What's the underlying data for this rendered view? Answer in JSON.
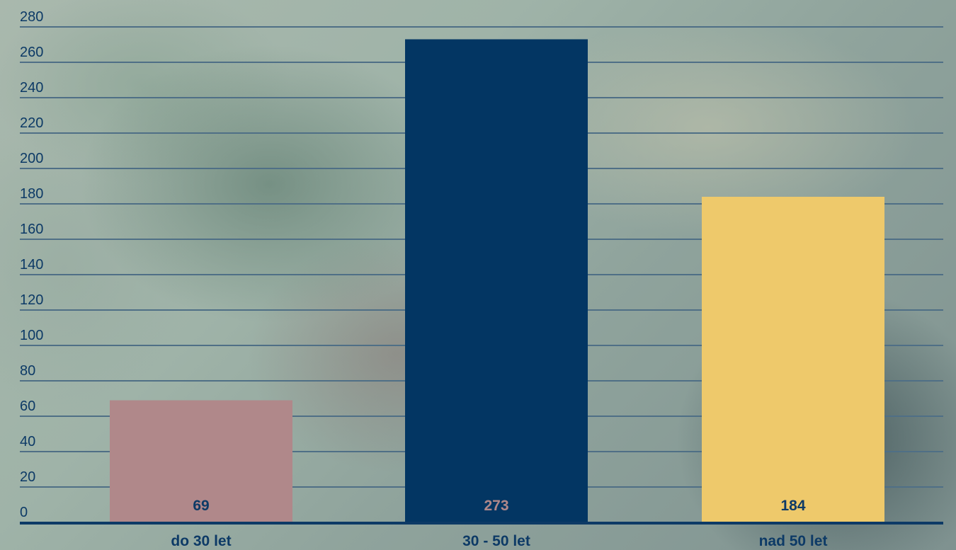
{
  "chart_data": {
    "type": "bar",
    "categories": [
      "do 30 let",
      "30 - 50 let",
      "nad 50 let"
    ],
    "values": [
      69,
      273,
      184
    ],
    "data_labels": [
      "69",
      "273",
      "184"
    ],
    "bar_colors": [
      "#b0888a",
      "#033663",
      "#eec96b"
    ],
    "data_label_colors": [
      "#0d3a66",
      "#b0888a",
      "#0d3a66"
    ],
    "ylim": [
      0,
      280
    ],
    "y_ticks": [
      "0",
      "20",
      "40",
      "60",
      "80",
      "100",
      "120",
      "140",
      "160",
      "180",
      "200",
      "220",
      "240",
      "260",
      "280"
    ],
    "grid": true,
    "axis_color": "#0d3a66",
    "grid_color": "#4f6f86",
    "text_color": "#0d3a66"
  }
}
